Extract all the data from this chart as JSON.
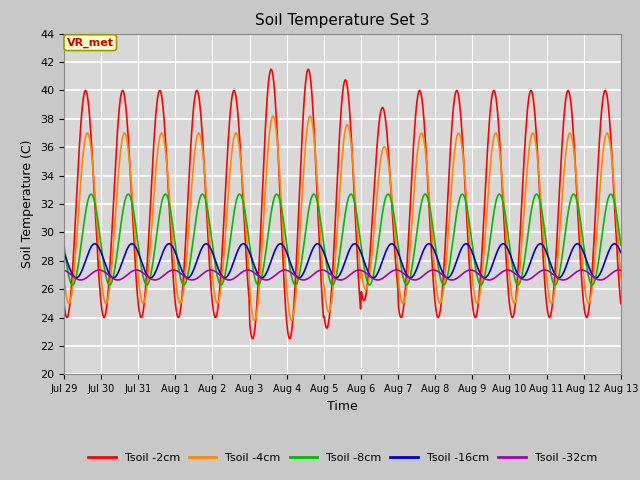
{
  "title": "Soil Temperature Set 3",
  "xlabel": "Time",
  "ylabel": "Soil Temperature (C)",
  "ylim": [
    20,
    44
  ],
  "yticks": [
    20,
    22,
    24,
    26,
    28,
    30,
    32,
    34,
    36,
    38,
    40,
    42,
    44
  ],
  "fig_bg_color": "#c8c8c8",
  "plot_bg_color": "#d8d8d8",
  "annotation_text": "VR_met",
  "annotation_bg": "#ffffcc",
  "annotation_border": "#999900",
  "annotation_text_color": "#cc0000",
  "line_colors": {
    "2cm": "#ff0000",
    "4cm": "#ff8800",
    "8cm": "#00bb00",
    "16cm": "#0000cc",
    "32cm": "#aa00aa"
  },
  "line_widths": {
    "2cm": 1.2,
    "4cm": 1.2,
    "8cm": 1.2,
    "16cm": 1.2,
    "32cm": 1.2
  },
  "legend_labels": [
    "Tsoil -2cm",
    "Tsoil -4cm",
    "Tsoil -8cm",
    "Tsoil -16cm",
    "Tsoil -32cm"
  ],
  "x_tick_labels": [
    "Jul 29",
    "Jul 30",
    "Jul 31",
    "Aug 1",
    "Aug 2",
    "Aug 3",
    "Aug 4",
    "Aug 5",
    "Aug 6",
    "Aug 7",
    "Aug 8",
    "Aug 9",
    "Aug 10",
    "Aug 11",
    "Aug 12",
    "Aug 13"
  ],
  "n_days": 15
}
